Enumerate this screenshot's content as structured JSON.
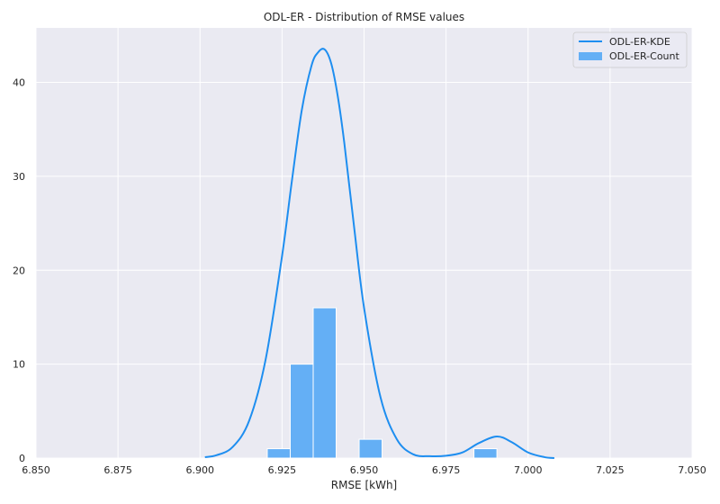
{
  "chart_data": {
    "type": "bar",
    "title": "ODL-ER - Distribution of RMSE values",
    "xlabel": "RMSE [kWh]",
    "ylabel": "",
    "xlim": [
      6.85,
      7.05
    ],
    "ylim": [
      0,
      45.8
    ],
    "xticks": [
      6.85,
      6.875,
      6.9,
      6.925,
      6.95,
      6.975,
      7.0,
      7.025,
      7.05
    ],
    "xtick_labels": [
      "6.850",
      "6.875",
      "6.900",
      "6.925",
      "6.950",
      "6.975",
      "7.000",
      "7.025",
      "7.050"
    ],
    "yticks": [
      0,
      10,
      20,
      30,
      40
    ],
    "ytick_labels": [
      "0",
      "10",
      "20",
      "30",
      "40"
    ],
    "grid": true,
    "legend_position": "top-right",
    "series": [
      {
        "name": "ODL-ER-Count",
        "kind": "histogram",
        "color": "#64aff5",
        "bins": [
          {
            "x0": 6.9205,
            "x1": 6.9275,
            "count": 1
          },
          {
            "x0": 6.9275,
            "x1": 6.9345,
            "count": 10
          },
          {
            "x0": 6.9345,
            "x1": 6.9415,
            "count": 16
          },
          {
            "x0": 6.9485,
            "x1": 6.9555,
            "count": 2
          },
          {
            "x0": 6.9835,
            "x1": 6.9905,
            "count": 1
          }
        ]
      },
      {
        "name": "ODL-ER-KDE",
        "kind": "line",
        "color": "#1e8ef0",
        "x": [
          6.9015,
          6.905,
          6.91,
          6.915,
          6.92,
          6.925,
          6.928,
          6.931,
          6.934,
          6.936,
          6.938,
          6.94,
          6.942,
          6.944,
          6.947,
          6.95,
          6.955,
          6.96,
          6.965,
          6.97,
          6.975,
          6.98,
          6.985,
          6.9905,
          6.995,
          7.0,
          7.005,
          7.008
        ],
        "y": [
          0.1,
          0.3,
          1.2,
          4.0,
          10.5,
          21.5,
          29.5,
          37.0,
          41.8,
          43.2,
          43.5,
          42.0,
          38.5,
          33.5,
          24.5,
          16.0,
          6.5,
          2.0,
          0.4,
          0.2,
          0.25,
          0.6,
          1.6,
          2.3,
          1.7,
          0.6,
          0.1,
          0.0
        ]
      }
    ]
  }
}
